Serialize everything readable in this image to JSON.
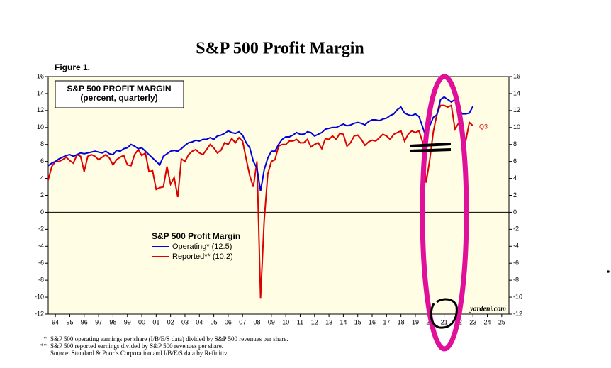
{
  "chart_data": {
    "type": "line",
    "title": "S&P 500 Profit Margin",
    "figure_label": "Figure 1.",
    "box_title": "S&P 500 PROFIT MARGIN",
    "box_subtitle": "(percent, quarterly)",
    "legend_title": "S&P 500 Profit Margin",
    "legend": "lower left",
    "annotation": "Q3",
    "source_mark": "yardeni.com",
    "footnotes": [
      {
        "marker": "*",
        "text": "S&P 500 operating earnings per share (I/B/E/S data) divided by S&P 500 revenues per share."
      },
      {
        "marker": "**",
        "text": "S&P 500 reported earnings divided by S&P 500 revenues per share."
      },
      {
        "marker": null,
        "text": "Source: Standard & Poor’s Corporation and I/B/E/S data by Refinitiv."
      }
    ],
    "xlim": [
      1994,
      2026
    ],
    "ylim": [
      -12,
      16
    ],
    "yticks": [
      -12,
      -10,
      -8,
      -6,
      -4,
      -2,
      0,
      2,
      4,
      6,
      8,
      10,
      12,
      14,
      16
    ],
    "xticks": [
      {
        "value": 1994.5,
        "label": "94"
      },
      {
        "value": 1995.5,
        "label": "95"
      },
      {
        "value": 1996.5,
        "label": "96"
      },
      {
        "value": 1997.5,
        "label": "97"
      },
      {
        "value": 1998.5,
        "label": "98"
      },
      {
        "value": 1999.5,
        "label": "99"
      },
      {
        "value": 2000.5,
        "label": "00"
      },
      {
        "value": 2001.5,
        "label": "01"
      },
      {
        "value": 2002.5,
        "label": "02"
      },
      {
        "value": 2003.5,
        "label": "03"
      },
      {
        "value": 2004.5,
        "label": "04"
      },
      {
        "value": 2005.5,
        "label": "05"
      },
      {
        "value": 2006.5,
        "label": "06"
      },
      {
        "value": 2007.5,
        "label": "07"
      },
      {
        "value": 2008.5,
        "label": "08"
      },
      {
        "value": 2009.5,
        "label": "09"
      },
      {
        "value": 2010.5,
        "label": "10"
      },
      {
        "value": 2011.5,
        "label": "11"
      },
      {
        "value": 2012.5,
        "label": "12"
      },
      {
        "value": 2013.5,
        "label": "13"
      },
      {
        "value": 2014.5,
        "label": "14"
      },
      {
        "value": 2015.5,
        "label": "15"
      },
      {
        "value": 2016.5,
        "label": "16"
      },
      {
        "value": 2017.5,
        "label": "17"
      },
      {
        "value": 2018.5,
        "label": "18"
      },
      {
        "value": 2019.5,
        "label": "19"
      },
      {
        "value": 2020.5,
        "label": "20"
      },
      {
        "value": 2021.5,
        "label": "21"
      },
      {
        "value": 2022.5,
        "label": "22"
      },
      {
        "value": 2023.5,
        "label": "23"
      },
      {
        "value": 2024.5,
        "label": "24"
      },
      {
        "value": 2025.5,
        "label": "25"
      }
    ],
    "x": [
      1994,
      1994.25,
      1994.5,
      1994.75,
      1995,
      1995.25,
      1995.5,
      1995.75,
      1996,
      1996.25,
      1996.5,
      1996.75,
      1997,
      1997.25,
      1997.5,
      1997.75,
      1998,
      1998.25,
      1998.5,
      1998.75,
      1999,
      1999.25,
      1999.5,
      1999.75,
      2000,
      2000.25,
      2000.5,
      2000.75,
      2001,
      2001.25,
      2001.5,
      2001.75,
      2002,
      2002.25,
      2002.5,
      2002.75,
      2003,
      2003.25,
      2003.5,
      2003.75,
      2004,
      2004.25,
      2004.5,
      2004.75,
      2005,
      2005.25,
      2005.5,
      2005.75,
      2006,
      2006.25,
      2006.5,
      2006.75,
      2007,
      2007.25,
      2007.5,
      2007.75,
      2008,
      2008.25,
      2008.5,
      2008.75,
      2009,
      2009.25,
      2009.5,
      2009.75,
      2010,
      2010.25,
      2010.5,
      2010.75,
      2011,
      2011.25,
      2011.5,
      2011.75,
      2012,
      2012.25,
      2012.5,
      2012.75,
      2013,
      2013.25,
      2013.5,
      2013.75,
      2014,
      2014.25,
      2014.5,
      2014.75,
      2015,
      2015.25,
      2015.5,
      2015.75,
      2016,
      2016.25,
      2016.5,
      2016.75,
      2017,
      2017.25,
      2017.5,
      2017.75,
      2018,
      2018.25,
      2018.5,
      2018.75,
      2019,
      2019.25,
      2019.5,
      2019.75,
      2020,
      2020.25,
      2020.5,
      2020.75,
      2021,
      2021.25,
      2021.5,
      2021.75,
      2022,
      2022.25,
      2022.5,
      2022.75,
      2023,
      2023.25,
      2023.5
    ],
    "series": [
      {
        "name": "Operating* (12.5)",
        "color": "#0000dd",
        "values": [
          5.5,
          5.8,
          6.0,
          6.3,
          6.5,
          6.7,
          6.8,
          6.6,
          6.8,
          7.0,
          6.9,
          7.0,
          7.1,
          7.2,
          7.1,
          7.0,
          7.2,
          6.9,
          6.8,
          7.3,
          7.2,
          7.5,
          7.6,
          8.0,
          7.8,
          7.5,
          7.6,
          7.2,
          6.8,
          6.4,
          6.0,
          5.6,
          6.6,
          6.9,
          7.2,
          7.3,
          7.2,
          7.5,
          7.9,
          8.2,
          8.3,
          8.5,
          8.4,
          8.6,
          8.6,
          8.8,
          8.6,
          9.0,
          9.1,
          9.3,
          9.6,
          9.4,
          9.3,
          9.5,
          9.1,
          8.2,
          7.6,
          6.0,
          5.2,
          2.5,
          5.0,
          6.4,
          7.2,
          7.2,
          8.0,
          8.6,
          8.9,
          8.9,
          9.1,
          9.4,
          9.2,
          9.2,
          9.5,
          9.4,
          9.0,
          9.2,
          9.4,
          9.8,
          9.9,
          10.0,
          10.0,
          10.2,
          10.4,
          10.2,
          10.3,
          10.5,
          10.6,
          10.5,
          10.3,
          10.7,
          10.9,
          10.9,
          10.8,
          11.0,
          11.1,
          11.4,
          11.6,
          12.1,
          12.4,
          11.7,
          11.5,
          11.4,
          11.6,
          11.3,
          10.1,
          8.8,
          10.2,
          11.2,
          11.5,
          13.3,
          13.6,
          13.3,
          13.0,
          13.3,
          12.3,
          11.6,
          11.6,
          11.7,
          12.5
        ]
      },
      {
        "name": "Reported** (10.2)",
        "color": "#dd0000",
        "values": [
          3.8,
          5.4,
          6.0,
          6.0,
          6.2,
          6.5,
          6.1,
          5.8,
          6.8,
          6.6,
          4.8,
          6.6,
          6.8,
          6.6,
          6.2,
          6.5,
          6.8,
          6.4,
          5.6,
          6.2,
          6.5,
          6.7,
          5.6,
          5.5,
          6.8,
          7.4,
          6.7,
          7.0,
          4.8,
          4.9,
          2.7,
          2.9,
          3.0,
          5.4,
          3.3,
          4.1,
          1.8,
          6.3,
          6.0,
          6.8,
          7.2,
          7.4,
          7.0,
          6.8,
          7.4,
          8.0,
          7.6,
          7.0,
          7.3,
          8.2,
          8.0,
          8.7,
          8.2,
          8.8,
          8.4,
          6.3,
          4.3,
          3.0,
          6.0,
          -10.1,
          -1.0,
          4.5,
          6.0,
          6.2,
          7.8,
          8.0,
          8.0,
          8.4,
          8.4,
          8.6,
          8.2,
          8.2,
          8.6,
          7.7,
          8.0,
          8.2,
          7.5,
          8.7,
          8.6,
          9.0,
          8.6,
          9.3,
          9.2,
          7.8,
          8.2,
          9.0,
          9.1,
          8.6,
          7.9,
          8.3,
          8.5,
          8.4,
          8.8,
          9.2,
          9.0,
          8.6,
          9.2,
          9.4,
          9.6,
          8.4,
          9.2,
          9.6,
          9.4,
          9.6,
          8.3,
          3.5,
          6.2,
          9.5,
          11.6,
          12.6,
          12.6,
          12.4,
          12.6,
          9.8,
          10.5,
          10.1,
          8.4,
          10.6,
          10.2
        ]
      }
    ]
  }
}
